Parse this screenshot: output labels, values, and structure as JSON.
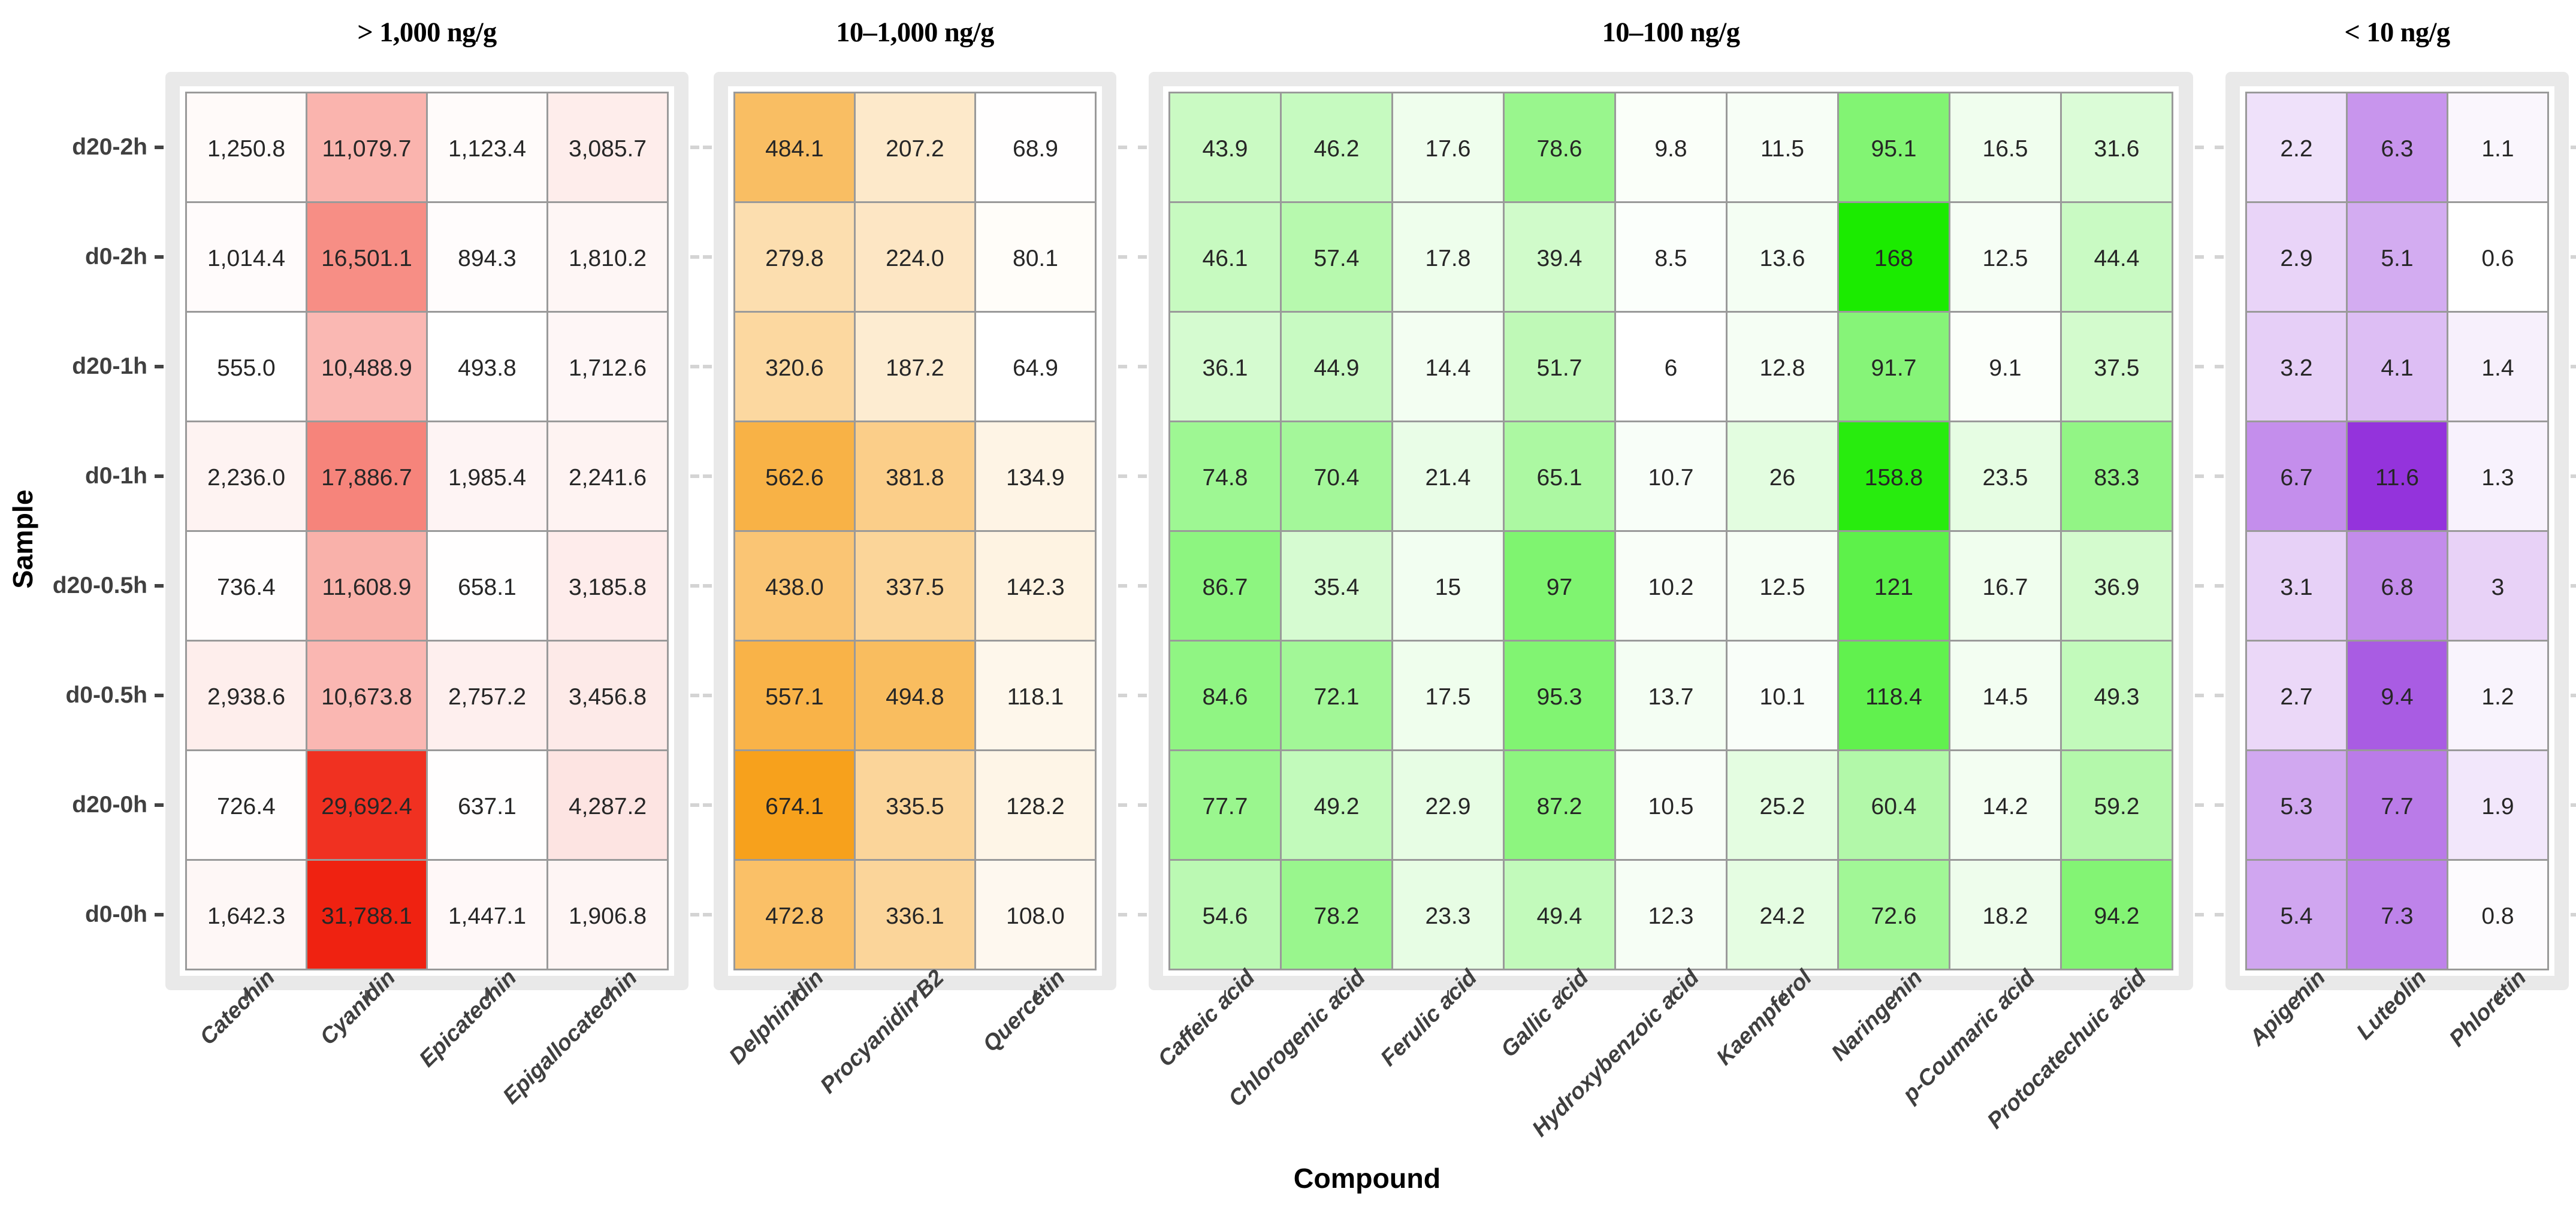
{
  "figure": {
    "x_axis_title": "Compound",
    "y_axis_title": "Sample"
  },
  "chart_data": {
    "type": "heatmap",
    "unit": "ng/g",
    "legend_position": "none",
    "grid": true,
    "rows": [
      "d20-2h",
      "d0-2h",
      "d20-1h",
      "d0-1h",
      "d20-0.5h",
      "d0-0.5h",
      "d20-0h",
      "d0-0h"
    ],
    "panels": [
      {
        "title": "> 1,000 ng/g",
        "accent_color": "#EF2211",
        "low_color": "#FFFFFF",
        "columns": [
          "Catechin",
          "Cyanidin",
          "Epicatechin",
          "Epigallocatechin"
        ],
        "values": [
          [
            "1,250.8",
            "11,079.7",
            "1,123.4",
            "3,085.7"
          ],
          [
            "1,014.4",
            "16,501.1",
            "894.3",
            "1,810.2"
          ],
          [
            "555.0",
            "10,488.9",
            "493.8",
            "1,712.6"
          ],
          [
            "2,236.0",
            "17,886.7",
            "1,985.4",
            "2,241.6"
          ],
          [
            "736.4",
            "11,608.9",
            "658.1",
            "3,185.8"
          ],
          [
            "2,938.6",
            "10,673.8",
            "2,757.2",
            "3,456.8"
          ],
          [
            "726.4",
            "29,692.4",
            "637.1",
            "4,287.2"
          ],
          [
            "1,642.3",
            "31,788.1",
            "1,447.1",
            "1,906.8"
          ]
        ]
      },
      {
        "title": "10–1,000 ng/g",
        "accent_color": "#F7A11C",
        "low_color": "#FFFFFF",
        "columns": [
          "Delphinidin",
          "Procyanidin B2",
          "Quercetin"
        ],
        "values": [
          [
            "484.1",
            "207.2",
            "68.9"
          ],
          [
            "279.8",
            "224.0",
            "80.1"
          ],
          [
            "320.6",
            "187.2",
            "64.9"
          ],
          [
            "562.6",
            "381.8",
            "134.9"
          ],
          [
            "438.0",
            "337.5",
            "142.3"
          ],
          [
            "557.1",
            "494.8",
            "118.1"
          ],
          [
            "674.1",
            "335.5",
            "128.2"
          ],
          [
            "472.8",
            "336.1",
            "108.0"
          ]
        ]
      },
      {
        "title": "10–100 ng/g",
        "accent_color": "#1BEB00",
        "low_color": "#FFFFFF",
        "columns": [
          "Caffeic acid",
          "Chlorogenic acid",
          "Ferulic acid",
          "Gallic acid",
          "Hydroxybenzoic acid",
          "Kaempferol",
          "Naringenin",
          "p-Coumaric acid",
          "Protocatechuic acid"
        ],
        "values": [
          [
            "43.9",
            "46.2",
            "17.6",
            "78.6",
            "9.8",
            "11.5",
            "95.1",
            "16.5",
            "31.6"
          ],
          [
            "46.1",
            "57.4",
            "17.8",
            "39.4",
            "8.5",
            "13.6",
            "168",
            "12.5",
            "44.4"
          ],
          [
            "36.1",
            "44.9",
            "14.4",
            "51.7",
            "6",
            "12.8",
            "91.7",
            "9.1",
            "37.5"
          ],
          [
            "74.8",
            "70.4",
            "21.4",
            "65.1",
            "10.7",
            "26",
            "158.8",
            "23.5",
            "83.3"
          ],
          [
            "86.7",
            "35.4",
            "15",
            "97",
            "10.2",
            "12.5",
            "121",
            "16.7",
            "36.9"
          ],
          [
            "84.6",
            "72.1",
            "17.5",
            "95.3",
            "13.7",
            "10.1",
            "118.4",
            "14.5",
            "49.3"
          ],
          [
            "77.7",
            "49.2",
            "22.9",
            "87.2",
            "10.5",
            "25.2",
            "60.4",
            "14.2",
            "59.2"
          ],
          [
            "54.6",
            "78.2",
            "23.3",
            "49.4",
            "12.3",
            "24.2",
            "72.6",
            "18.2",
            "94.2"
          ]
        ]
      },
      {
        "title": "< 10 ng/g",
        "accent_color": "#9433DC",
        "low_color": "#FFFFFF",
        "columns": [
          "Apigenin",
          "Luteolin",
          "Phloretin"
        ],
        "values": [
          [
            "2.2",
            "6.3",
            "1.1"
          ],
          [
            "2.9",
            "5.1",
            "0.6"
          ],
          [
            "3.2",
            "4.1",
            "1.4"
          ],
          [
            "6.7",
            "11.6",
            "1.3"
          ],
          [
            "3.1",
            "6.8",
            "3"
          ],
          [
            "2.7",
            "9.4",
            "1.2"
          ],
          [
            "5.3",
            "7.7",
            "1.9"
          ],
          [
            "5.4",
            "7.3",
            "0.8"
          ]
        ]
      }
    ]
  }
}
